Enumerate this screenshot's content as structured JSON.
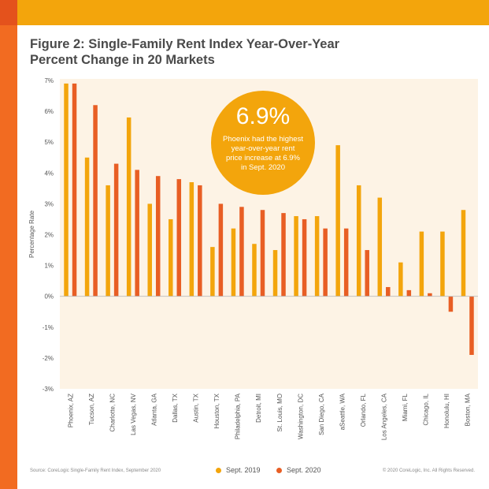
{
  "title_lines": [
    "Figure 2: Single-Family Rent Index Year-Over-Year",
    "Percent Change in 20 Markets"
  ],
  "colors": {
    "top_bar": "#f3a50c",
    "left_bar": "#f26b21",
    "plot_bg": "#fdf3e5",
    "series_2019": "#f3a50c",
    "series_2020": "#e85e24"
  },
  "callout": {
    "value": "6.9%",
    "text": "Phoenix had the highest year-over-year rent price increase at 6.9% in Sept. 2020"
  },
  "footer": {
    "source": "Source: CoreLogic Single-Family Rent Index, September 2020",
    "copyright": "© 2020 CoreLogic, Inc. All Rights Reserved."
  },
  "chart_data": {
    "type": "bar",
    "title": "Figure 2: Single-Family Rent Index Year-Over-Year Percent Change in 20 Markets",
    "ylabel": "Percentage Rate",
    "xlabel": "",
    "ylim": [
      -3,
      7
    ],
    "y_ticks": [
      "7%",
      "6%",
      "5%",
      "4%",
      "3%",
      "2%",
      "1%",
      "0%",
      "-1%",
      "-2%",
      "-3%"
    ],
    "y_tick_values": [
      7,
      6,
      5,
      4,
      3,
      2,
      1,
      0,
      -1,
      -2,
      -3
    ],
    "grid": false,
    "legend_position": "bottom",
    "categories": [
      "Phoenix, AZ",
      "Tucson, AZ",
      "Charlotte, NC",
      "Las Vegas, NV",
      "Atlanta, GA",
      "Dallas, TX",
      "Austin, TX",
      "Houston, TX",
      "Philadelphia, PA",
      "Detroit, MI",
      "St. Louis, MO",
      "Washington, DC",
      "San Diego, CA",
      "aSeattle, WA",
      "Orlando, FL",
      "Los Angeles, CA",
      "Miami, FL",
      "Chicago, IL",
      "Honolulu, HI",
      "Boston, MA"
    ],
    "series": [
      {
        "name": "Sept. 2019",
        "color": "#f3a50c",
        "values": [
          6.9,
          4.5,
          3.6,
          5.8,
          3.0,
          2.5,
          3.7,
          1.6,
          2.2,
          1.7,
          1.5,
          2.6,
          2.6,
          4.9,
          3.6,
          3.2,
          1.1,
          2.1,
          2.1,
          2.8
        ]
      },
      {
        "name": "Sept. 2020",
        "color": "#e85e24",
        "values": [
          6.9,
          6.2,
          4.3,
          4.1,
          3.9,
          3.8,
          3.6,
          3.0,
          2.9,
          2.8,
          2.7,
          2.5,
          2.2,
          2.2,
          1.5,
          0.3,
          0.2,
          0.1,
          -0.5,
          -1.9
        ]
      }
    ]
  }
}
